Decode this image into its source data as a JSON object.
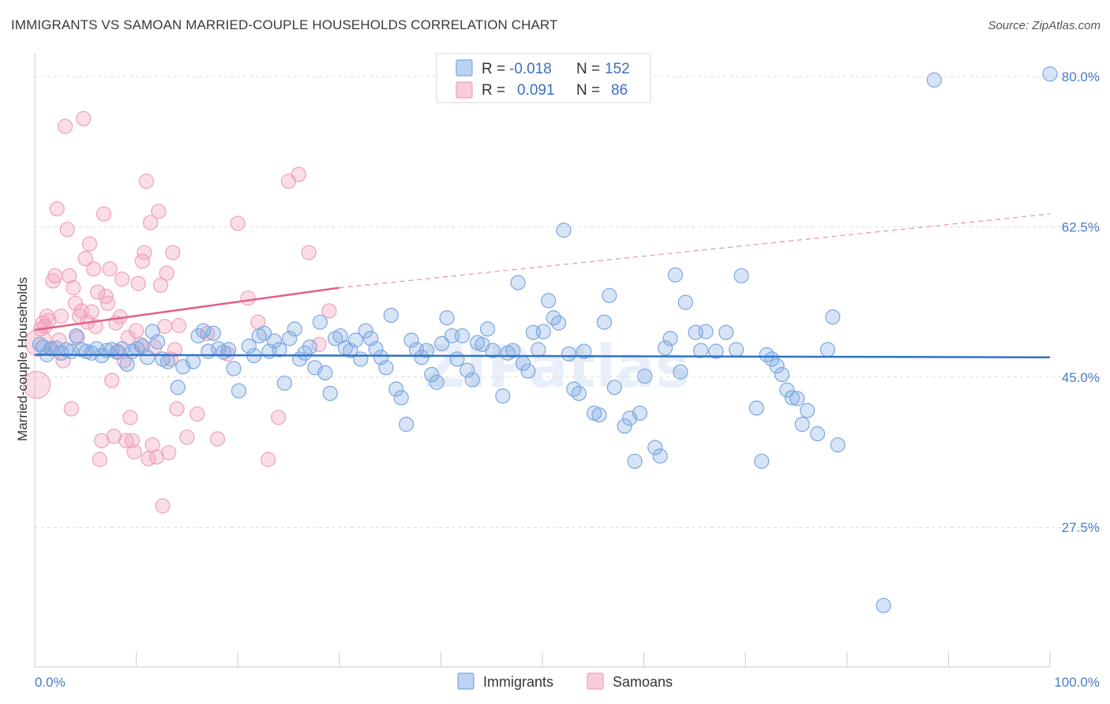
{
  "title": "IMMIGRANTS VS SAMOAN MARRIED-COUPLE HOUSEHOLDS CORRELATION CHART",
  "source": "Source: ZipAtlas.com",
  "watermark": "ZIPatlas",
  "chart_data": {
    "type": "scatter",
    "xlabel": "",
    "ylabel": "Married-couple Households",
    "xlim": [
      0,
      100
    ],
    "ylim": [
      10,
      82
    ],
    "x_tick_labels": [
      "0.0%",
      "100.0%"
    ],
    "y_ticks": [
      27.5,
      45.0,
      62.5,
      80.0
    ],
    "y_tick_labels": [
      "27.5%",
      "45.0%",
      "62.5%",
      "80.0%"
    ],
    "grid": true,
    "legend": {
      "position": "top-center",
      "entries": [
        {
          "r_label": "R =",
          "r": "-0.018",
          "n_label": "N =",
          "n": "152"
        },
        {
          "r_label": "R =",
          "r": "0.091",
          "n_label": "N =",
          "n": "86"
        }
      ]
    },
    "series": [
      {
        "name": "Immigrants",
        "color": "#7ba7e0",
        "line_color": "#2f72c9",
        "trend": {
          "x": [
            0,
            100
          ],
          "y": [
            47.6,
            47.3
          ]
        },
        "points": [
          [
            0.5,
            48.8
          ],
          [
            0.8,
            48.5
          ],
          [
            1.2,
            47.6
          ],
          [
            1.6,
            48.3
          ],
          [
            2.1,
            48.4
          ],
          [
            2.6,
            47.8
          ],
          [
            3.1,
            48.2
          ],
          [
            3.6,
            48.0
          ],
          [
            4.1,
            49.8
          ],
          [
            4.6,
            48.2
          ],
          [
            5.1,
            48.0
          ],
          [
            5.6,
            47.8
          ],
          [
            6.1,
            48.3
          ],
          [
            6.6,
            47.5
          ],
          [
            7.1,
            48.1
          ],
          [
            7.6,
            48.2
          ],
          [
            8.1,
            47.9
          ],
          [
            8.6,
            48.3
          ],
          [
            9.1,
            46.5
          ],
          [
            9.6,
            48.0
          ],
          [
            10.1,
            48.3
          ],
          [
            10.6,
            48.6
          ],
          [
            11.1,
            47.3
          ],
          [
            11.6,
            50.3
          ],
          [
            12.1,
            49.1
          ],
          [
            12.6,
            47.1
          ],
          [
            13.1,
            46.8
          ],
          [
            14.1,
            43.8
          ],
          [
            14.6,
            46.2
          ],
          [
            15.6,
            46.8
          ],
          [
            16.1,
            49.8
          ],
          [
            16.6,
            50.4
          ],
          [
            17.1,
            48.0
          ],
          [
            17.6,
            50.1
          ],
          [
            18.1,
            48.3
          ],
          [
            18.6,
            47.9
          ],
          [
            19.1,
            48.2
          ],
          [
            19.6,
            46.0
          ],
          [
            20.1,
            43.4
          ],
          [
            21.1,
            48.6
          ],
          [
            21.6,
            47.5
          ],
          [
            22.1,
            49.8
          ],
          [
            22.6,
            50.1
          ],
          [
            23.1,
            48.0
          ],
          [
            23.6,
            49.2
          ],
          [
            24.1,
            48.2
          ],
          [
            24.6,
            44.3
          ],
          [
            25.1,
            49.5
          ],
          [
            25.6,
            50.6
          ],
          [
            26.1,
            47.1
          ],
          [
            26.6,
            47.8
          ],
          [
            27.1,
            48.5
          ],
          [
            27.6,
            46.1
          ],
          [
            28.1,
            51.4
          ],
          [
            28.6,
            45.5
          ],
          [
            29.1,
            43.1
          ],
          [
            29.6,
            49.5
          ],
          [
            30.1,
            49.8
          ],
          [
            30.6,
            48.4
          ],
          [
            31.1,
            48.1
          ],
          [
            31.6,
            49.3
          ],
          [
            32.1,
            47.1
          ],
          [
            32.6,
            50.4
          ],
          [
            33.1,
            49.5
          ],
          [
            33.6,
            48.3
          ],
          [
            34.1,
            47.3
          ],
          [
            34.6,
            46.1
          ],
          [
            35.1,
            52.2
          ],
          [
            35.6,
            43.6
          ],
          [
            36.1,
            42.6
          ],
          [
            36.6,
            39.5
          ],
          [
            37.1,
            49.3
          ],
          [
            37.6,
            48.2
          ],
          [
            38.1,
            47.3
          ],
          [
            38.6,
            48.1
          ],
          [
            39.1,
            45.3
          ],
          [
            39.6,
            44.4
          ],
          [
            40.1,
            48.9
          ],
          [
            40.6,
            51.9
          ],
          [
            41.1,
            49.8
          ],
          [
            41.6,
            47.1
          ],
          [
            42.1,
            49.8
          ],
          [
            42.6,
            45.8
          ],
          [
            43.1,
            44.7
          ],
          [
            43.6,
            49.0
          ],
          [
            44.1,
            48.8
          ],
          [
            44.6,
            50.6
          ],
          [
            45.1,
            48.1
          ],
          [
            46.1,
            42.8
          ],
          [
            46.6,
            47.8
          ],
          [
            47.1,
            48.1
          ],
          [
            47.6,
            56.0
          ],
          [
            48.1,
            46.6
          ],
          [
            48.6,
            45.7
          ],
          [
            49.1,
            50.2
          ],
          [
            49.6,
            48.2
          ],
          [
            50.1,
            50.3
          ],
          [
            50.6,
            53.9
          ],
          [
            51.1,
            51.9
          ],
          [
            51.6,
            51.3
          ],
          [
            52.1,
            62.1
          ],
          [
            52.6,
            47.7
          ],
          [
            53.1,
            43.6
          ],
          [
            53.6,
            43.1
          ],
          [
            54.1,
            48.0
          ],
          [
            55.1,
            40.8
          ],
          [
            55.6,
            40.6
          ],
          [
            56.1,
            51.4
          ],
          [
            56.6,
            54.5
          ],
          [
            57.1,
            43.8
          ],
          [
            58.1,
            39.3
          ],
          [
            58.6,
            40.2
          ],
          [
            59.1,
            35.2
          ],
          [
            59.6,
            40.8
          ],
          [
            60.1,
            45.1
          ],
          [
            61.1,
            36.8
          ],
          [
            61.6,
            35.8
          ],
          [
            62.1,
            48.4
          ],
          [
            62.6,
            49.5
          ],
          [
            63.1,
            56.9
          ],
          [
            63.6,
            45.6
          ],
          [
            64.1,
            53.7
          ],
          [
            65.1,
            50.2
          ],
          [
            65.6,
            48.1
          ],
          [
            66.1,
            50.3
          ],
          [
            67.1,
            48.0
          ],
          [
            68.1,
            50.2
          ],
          [
            69.1,
            48.2
          ],
          [
            69.6,
            56.8
          ],
          [
            71.1,
            41.4
          ],
          [
            71.6,
            35.2
          ],
          [
            72.1,
            47.6
          ],
          [
            72.6,
            47.1
          ],
          [
            73.1,
            46.3
          ],
          [
            73.6,
            45.3
          ],
          [
            74.1,
            43.5
          ],
          [
            74.6,
            42.6
          ],
          [
            75.1,
            42.5
          ],
          [
            75.6,
            39.5
          ],
          [
            76.1,
            41.1
          ],
          [
            77.1,
            38.4
          ],
          [
            78.1,
            48.2
          ],
          [
            78.6,
            52.0
          ],
          [
            79.1,
            37.1
          ],
          [
            88.6,
            79.6
          ],
          [
            100.0,
            80.3
          ],
          [
            83.6,
            18.4
          ]
        ]
      },
      {
        "name": "Samoans",
        "color": "#f0a0bb",
        "line_color": "#e0608a",
        "trend": {
          "x": [
            0,
            30
          ],
          "y": [
            50.5,
            55.4
          ]
        },
        "trend_ext": {
          "x": [
            30,
            100
          ],
          "y": [
            55.4,
            64.0
          ]
        },
        "points": [
          [
            0.2,
            44.1
          ],
          [
            0.4,
            49.0
          ],
          [
            0.6,
            50.6
          ],
          [
            0.8,
            51.3
          ],
          [
            1.0,
            50.9
          ],
          [
            1.2,
            52.1
          ],
          [
            1.4,
            51.6
          ],
          [
            1.6,
            48.3
          ],
          [
            1.8,
            56.2
          ],
          [
            2.0,
            56.8
          ],
          [
            2.2,
            64.6
          ],
          [
            2.4,
            49.3
          ],
          [
            2.6,
            52.1
          ],
          [
            2.8,
            46.9
          ],
          [
            3.0,
            74.2
          ],
          [
            3.2,
            62.2
          ],
          [
            3.4,
            56.8
          ],
          [
            3.6,
            41.3
          ],
          [
            3.8,
            55.4
          ],
          [
            4.0,
            53.6
          ],
          [
            4.2,
            49.6
          ],
          [
            4.4,
            52.1
          ],
          [
            4.6,
            52.7
          ],
          [
            4.8,
            75.1
          ],
          [
            5.0,
            58.8
          ],
          [
            5.2,
            51.4
          ],
          [
            5.4,
            60.5
          ],
          [
            5.6,
            52.6
          ],
          [
            5.8,
            57.6
          ],
          [
            6.0,
            50.9
          ],
          [
            6.2,
            54.9
          ],
          [
            6.4,
            35.4
          ],
          [
            6.6,
            37.6
          ],
          [
            6.8,
            64.0
          ],
          [
            7.0,
            54.4
          ],
          [
            7.2,
            53.6
          ],
          [
            7.4,
            57.6
          ],
          [
            7.6,
            44.6
          ],
          [
            7.8,
            38.1
          ],
          [
            8.0,
            51.3
          ],
          [
            8.2,
            48.0
          ],
          [
            8.4,
            52.0
          ],
          [
            8.6,
            56.4
          ],
          [
            8.8,
            46.9
          ],
          [
            9.0,
            37.6
          ],
          [
            9.2,
            49.6
          ],
          [
            9.4,
            40.3
          ],
          [
            9.6,
            37.6
          ],
          [
            9.8,
            36.3
          ],
          [
            10.0,
            50.4
          ],
          [
            10.2,
            55.9
          ],
          [
            10.4,
            48.8
          ],
          [
            10.6,
            58.5
          ],
          [
            10.8,
            59.5
          ],
          [
            11.0,
            67.8
          ],
          [
            11.2,
            35.5
          ],
          [
            11.4,
            63.0
          ],
          [
            11.6,
            37.1
          ],
          [
            11.8,
            48.5
          ],
          [
            12.0,
            35.7
          ],
          [
            12.2,
            64.3
          ],
          [
            12.4,
            55.7
          ],
          [
            12.6,
            30.0
          ],
          [
            12.8,
            50.9
          ],
          [
            13.0,
            57.1
          ],
          [
            13.2,
            36.2
          ],
          [
            13.4,
            47.1
          ],
          [
            13.6,
            59.5
          ],
          [
            13.8,
            48.2
          ],
          [
            14.0,
            41.3
          ],
          [
            14.2,
            51.0
          ],
          [
            15.0,
            38.0
          ],
          [
            16.0,
            40.7
          ],
          [
            17.0,
            50.1
          ],
          [
            18.0,
            37.8
          ],
          [
            19.0,
            47.7
          ],
          [
            20.0,
            62.9
          ],
          [
            21.0,
            54.2
          ],
          [
            22.0,
            51.4
          ],
          [
            23.0,
            35.4
          ],
          [
            24.0,
            40.3
          ],
          [
            25.0,
            67.8
          ],
          [
            26.0,
            68.6
          ],
          [
            27.0,
            59.5
          ],
          [
            28.0,
            48.8
          ],
          [
            29.0,
            52.7
          ]
        ]
      }
    ]
  },
  "bottom_legend": [
    {
      "label": "Immigrants",
      "color": "#7ba7e0"
    },
    {
      "label": "Samoans",
      "color": "#f0a0bb"
    }
  ]
}
